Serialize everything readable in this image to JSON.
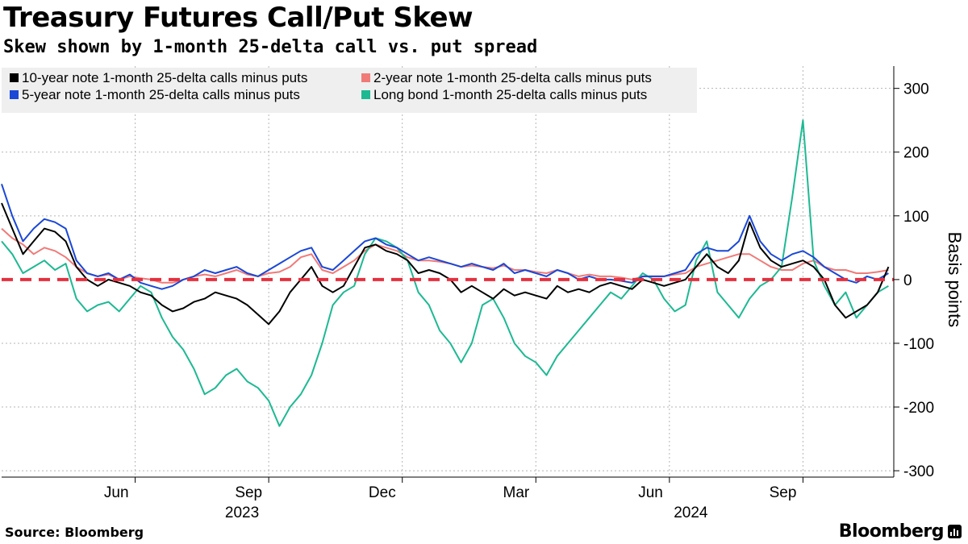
{
  "header": {
    "title": "Treasury Futures Call/Put Skew",
    "subtitle": "Skew shown by 1-month 25-delta call vs. put spread"
  },
  "footer": {
    "source": "Source: Bloomberg",
    "brand": "Bloomberg"
  },
  "colors": {
    "ten_year": "#000000",
    "two_year": "#f07a78",
    "five_year": "#1a47d6",
    "long_bond": "#1db992",
    "zero_line": "#e5303f",
    "legend_bg": "#efefef",
    "grid": "#b5b5b5"
  },
  "chart_data": {
    "type": "line",
    "title": "Treasury Futures Call/Put Skew",
    "ylabel": "Basis points",
    "ylim": [
      -310,
      335
    ],
    "yticks": [
      300,
      200,
      100,
      0,
      -100,
      -200,
      -300
    ],
    "ytick_labels": [
      "300",
      "200",
      "100",
      "0",
      "-100",
      "-200",
      "-300"
    ],
    "x_months": [
      {
        "label": "Jun",
        "t": 2023.42
      },
      {
        "label": "Sep",
        "t": 2023.67
      },
      {
        "label": "Dec",
        "t": 2023.92
      },
      {
        "label": "Mar",
        "t": 2024.17
      },
      {
        "label": "Jun",
        "t": 2024.42
      },
      {
        "label": "Sep",
        "t": 2024.67
      }
    ],
    "x_years": [
      {
        "label": "2023",
        "t": 2023.62
      },
      {
        "label": "2024",
        "t": 2024.46
      }
    ],
    "xlim": [
      2023.17,
      2024.84
    ],
    "zero_line": 0,
    "series": [
      {
        "key": "two_year",
        "name": "2-year note 1-month 25-delta calls minus puts",
        "x": [
          2023.17,
          2023.19,
          2023.21,
          2023.23,
          2023.25,
          2023.27,
          2023.29,
          2023.31,
          2023.33,
          2023.35,
          2023.37,
          2023.39,
          2023.41,
          2023.43,
          2023.45,
          2023.47,
          2023.49,
          2023.51,
          2023.53,
          2023.55,
          2023.57,
          2023.59,
          2023.61,
          2023.63,
          2023.65,
          2023.67,
          2023.69,
          2023.71,
          2023.73,
          2023.75,
          2023.77,
          2023.79,
          2023.81,
          2023.83,
          2023.85,
          2023.87,
          2023.89,
          2023.91,
          2023.93,
          2023.95,
          2023.97,
          2023.99,
          2024.01,
          2024.03,
          2024.05,
          2024.07,
          2024.09,
          2024.11,
          2024.13,
          2024.15,
          2024.17,
          2024.19,
          2024.21,
          2024.23,
          2024.25,
          2024.27,
          2024.29,
          2024.31,
          2024.33,
          2024.35,
          2024.37,
          2024.39,
          2024.41,
          2024.43,
          2024.45,
          2024.47,
          2024.49,
          2024.51,
          2024.53,
          2024.55,
          2024.57,
          2024.59,
          2024.61,
          2024.63,
          2024.65,
          2024.67,
          2024.69,
          2024.71,
          2024.73,
          2024.75,
          2024.77,
          2024.79,
          2024.81,
          2024.83
        ],
        "y": [
          80,
          65,
          55,
          40,
          50,
          45,
          35,
          20,
          10,
          5,
          8,
          0,
          5,
          2,
          0,
          -5,
          -5,
          0,
          5,
          8,
          5,
          10,
          15,
          8,
          5,
          10,
          12,
          20,
          35,
          40,
          15,
          10,
          20,
          30,
          45,
          55,
          50,
          45,
          35,
          30,
          30,
          28,
          25,
          20,
          22,
          20,
          18,
          22,
          15,
          15,
          12,
          10,
          15,
          10,
          5,
          8,
          5,
          5,
          3,
          0,
          5,
          5,
          5,
          8,
          10,
          20,
          25,
          30,
          35,
          40,
          40,
          30,
          20,
          15,
          15,
          25,
          30,
          20,
          15,
          15,
          10,
          10,
          12,
          15
        ]
      },
      {
        "key": "long_bond",
        "name": "Long bond 1-month 25-delta calls minus puts",
        "x": [
          2023.17,
          2023.19,
          2023.21,
          2023.23,
          2023.25,
          2023.27,
          2023.29,
          2023.31,
          2023.33,
          2023.35,
          2023.37,
          2023.39,
          2023.41,
          2023.43,
          2023.45,
          2023.47,
          2023.49,
          2023.51,
          2023.53,
          2023.55,
          2023.57,
          2023.59,
          2023.61,
          2023.63,
          2023.65,
          2023.67,
          2023.69,
          2023.71,
          2023.73,
          2023.75,
          2023.77,
          2023.79,
          2023.81,
          2023.83,
          2023.85,
          2023.87,
          2023.89,
          2023.91,
          2023.93,
          2023.95,
          2023.97,
          2023.99,
          2024.01,
          2024.03,
          2024.05,
          2024.07,
          2024.09,
          2024.11,
          2024.13,
          2024.15,
          2024.17,
          2024.19,
          2024.21,
          2024.23,
          2024.25,
          2024.27,
          2024.29,
          2024.31,
          2024.33,
          2024.35,
          2024.37,
          2024.39,
          2024.41,
          2024.43,
          2024.45,
          2024.47,
          2024.49,
          2024.51,
          2024.53,
          2024.55,
          2024.57,
          2024.59,
          2024.61,
          2024.63,
          2024.65,
          2024.67,
          2024.69,
          2024.71,
          2024.73,
          2024.75,
          2024.77,
          2024.79,
          2024.81,
          2024.83
        ],
        "y": [
          60,
          40,
          10,
          20,
          30,
          15,
          25,
          -30,
          -50,
          -40,
          -35,
          -50,
          -30,
          -10,
          -20,
          -60,
          -90,
          -110,
          -140,
          -180,
          -170,
          -150,
          -140,
          -160,
          -170,
          -190,
          -230,
          -200,
          -180,
          -150,
          -100,
          -40,
          -20,
          -10,
          40,
          65,
          60,
          50,
          30,
          -20,
          -40,
          -80,
          -100,
          -130,
          -100,
          -40,
          -30,
          -60,
          -100,
          -120,
          -130,
          -150,
          -120,
          -100,
          -80,
          -60,
          -40,
          -20,
          -30,
          -10,
          10,
          0,
          -30,
          -50,
          -40,
          30,
          60,
          -20,
          -40,
          -60,
          -30,
          -10,
          0,
          20,
          130,
          250,
          30,
          -10,
          -40,
          -20,
          -60,
          -40,
          -20,
          -10
        ]
      },
      {
        "key": "five_year",
        "name": "5-year note 1-month 25-delta calls minus puts",
        "x": [
          2023.17,
          2023.19,
          2023.21,
          2023.23,
          2023.25,
          2023.27,
          2023.29,
          2023.31,
          2023.33,
          2023.35,
          2023.37,
          2023.39,
          2023.41,
          2023.43,
          2023.45,
          2023.47,
          2023.49,
          2023.51,
          2023.53,
          2023.55,
          2023.57,
          2023.59,
          2023.61,
          2023.63,
          2023.65,
          2023.67,
          2023.69,
          2023.71,
          2023.73,
          2023.75,
          2023.77,
          2023.79,
          2023.81,
          2023.83,
          2023.85,
          2023.87,
          2023.89,
          2023.91,
          2023.93,
          2023.95,
          2023.97,
          2023.99,
          2024.01,
          2024.03,
          2024.05,
          2024.07,
          2024.09,
          2024.11,
          2024.13,
          2024.15,
          2024.17,
          2024.19,
          2024.21,
          2024.23,
          2024.25,
          2024.27,
          2024.29,
          2024.31,
          2024.33,
          2024.35,
          2024.37,
          2024.39,
          2024.41,
          2024.43,
          2024.45,
          2024.47,
          2024.49,
          2024.51,
          2024.53,
          2024.55,
          2024.57,
          2024.59,
          2024.61,
          2024.63,
          2024.65,
          2024.67,
          2024.69,
          2024.71,
          2024.73,
          2024.75,
          2024.77,
          2024.79,
          2024.81,
          2024.83
        ],
        "y": [
          150,
          100,
          60,
          80,
          95,
          90,
          80,
          30,
          10,
          5,
          10,
          0,
          8,
          -5,
          -10,
          -15,
          -10,
          0,
          5,
          15,
          10,
          15,
          20,
          10,
          5,
          15,
          25,
          35,
          45,
          50,
          20,
          15,
          30,
          45,
          60,
          65,
          55,
          50,
          40,
          30,
          35,
          30,
          25,
          20,
          25,
          20,
          15,
          25,
          10,
          15,
          10,
          5,
          15,
          10,
          0,
          5,
          0,
          0,
          -2,
          -5,
          5,
          5,
          5,
          10,
          15,
          40,
          50,
          45,
          45,
          60,
          100,
          60,
          40,
          30,
          40,
          45,
          35,
          20,
          10,
          0,
          -5,
          5,
          0,
          10
        ]
      },
      {
        "key": "ten_year",
        "name": "10-year note 1-month 25-delta calls minus puts",
        "x": [
          2023.17,
          2023.19,
          2023.21,
          2023.23,
          2023.25,
          2023.27,
          2023.29,
          2023.31,
          2023.33,
          2023.35,
          2023.37,
          2023.39,
          2023.41,
          2023.43,
          2023.45,
          2023.47,
          2023.49,
          2023.51,
          2023.53,
          2023.55,
          2023.57,
          2023.59,
          2023.61,
          2023.63,
          2023.65,
          2023.67,
          2023.69,
          2023.71,
          2023.73,
          2023.75,
          2023.77,
          2023.79,
          2023.81,
          2023.83,
          2023.85,
          2023.87,
          2023.89,
          2023.91,
          2023.93,
          2023.95,
          2023.97,
          2023.99,
          2024.01,
          2024.03,
          2024.05,
          2024.07,
          2024.09,
          2024.11,
          2024.13,
          2024.15,
          2024.17,
          2024.19,
          2024.21,
          2024.23,
          2024.25,
          2024.27,
          2024.29,
          2024.31,
          2024.33,
          2024.35,
          2024.37,
          2024.39,
          2024.41,
          2024.43,
          2024.45,
          2024.47,
          2024.49,
          2024.51,
          2024.53,
          2024.55,
          2024.57,
          2024.59,
          2024.61,
          2024.63,
          2024.65,
          2024.67,
          2024.69,
          2024.71,
          2024.73,
          2024.75,
          2024.77,
          2024.79,
          2024.81,
          2024.83
        ],
        "y": [
          120,
          80,
          40,
          60,
          80,
          75,
          60,
          20,
          0,
          -10,
          0,
          -5,
          -10,
          -20,
          -25,
          -40,
          -50,
          -45,
          -35,
          -30,
          -20,
          -25,
          -30,
          -40,
          -55,
          -70,
          -50,
          -20,
          0,
          20,
          -10,
          -20,
          -10,
          20,
          50,
          55,
          45,
          40,
          30,
          10,
          15,
          10,
          0,
          -20,
          -10,
          -20,
          -30,
          -15,
          -25,
          -20,
          -25,
          -30,
          -10,
          -20,
          -15,
          -20,
          -10,
          -5,
          -10,
          -15,
          0,
          -5,
          -10,
          -5,
          0,
          20,
          40,
          20,
          10,
          30,
          90,
          50,
          30,
          20,
          25,
          30,
          20,
          0,
          -40,
          -60,
          -50,
          -40,
          -20,
          20
        ]
      }
    ]
  }
}
